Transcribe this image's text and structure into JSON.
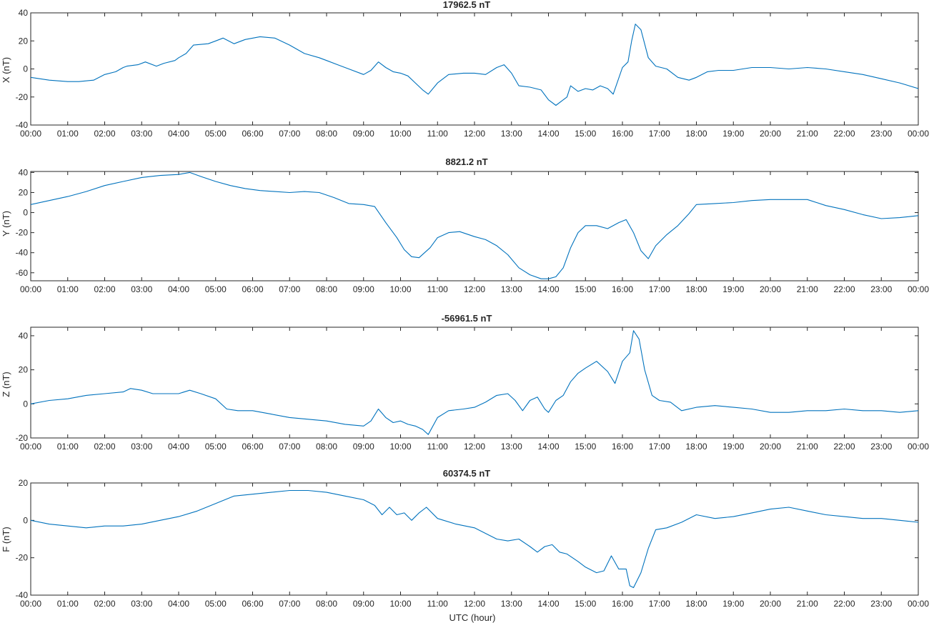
{
  "chart_data": [
    {
      "type": "line",
      "title": "17962.5 nT",
      "ylabel": "X (nT)",
      "xlabel": "",
      "ylim": [
        -40,
        40
      ],
      "yticks": [
        -40,
        -20,
        0,
        20,
        40
      ],
      "xlim": [
        0,
        24
      ],
      "xticks": [
        "00:00",
        "01:00",
        "02:00",
        "03:00",
        "04:00",
        "05:00",
        "06:00",
        "07:00",
        "08:00",
        "09:00",
        "10:00",
        "11:00",
        "12:00",
        "13:00",
        "14:00",
        "15:00",
        "16:00",
        "17:00",
        "18:00",
        "19:00",
        "20:00",
        "21:00",
        "22:00",
        "23:00",
        "00:00"
      ],
      "series": [
        {
          "x": [
            0,
            0.5,
            1,
            1.3,
            1.7,
            2,
            2.3,
            2.5,
            2.6,
            2.9,
            3.1,
            3.4,
            3.6,
            3.9,
            4.0,
            4.2,
            4.4,
            4.8,
            5.0,
            5.2,
            5.5,
            5.8,
            6.2,
            6.6,
            7.0,
            7.4,
            7.8,
            8.0,
            8.3,
            8.6,
            9.0,
            9.2,
            9.4,
            9.6,
            9.8,
            10.0,
            10.2,
            10.4,
            10.6,
            10.75,
            11.0,
            11.3,
            11.7,
            12.0,
            12.3,
            12.6,
            12.8,
            13.0,
            13.2,
            13.5,
            13.8,
            14.0,
            14.2,
            14.4,
            14.5,
            14.6,
            14.8,
            15.0,
            15.2,
            15.4,
            15.6,
            15.75,
            16.0,
            16.15,
            16.25,
            16.35,
            16.5,
            16.7,
            16.9,
            17.2,
            17.5,
            17.8,
            18.0,
            18.3,
            18.6,
            19.0,
            19.5,
            20.0,
            20.5,
            21.0,
            21.5,
            22.0,
            22.5,
            23.0,
            23.5,
            24.0
          ],
          "values": [
            -6,
            -8,
            -9,
            -9,
            -8,
            -4,
            -2,
            1,
            2,
            3,
            5,
            2,
            4,
            6,
            8,
            11,
            17,
            18,
            20,
            22,
            18,
            21,
            23,
            22,
            17,
            11,
            8,
            6,
            3,
            0,
            -4,
            -1,
            5,
            1,
            -2,
            -3,
            -5,
            -10,
            -15,
            -18,
            -10,
            -4,
            -3,
            -3,
            -4,
            1,
            3,
            -3,
            -12,
            -13,
            -15,
            -22,
            -26,
            -22,
            -20,
            -12,
            -16,
            -14,
            -15,
            -12,
            -14,
            -18,
            1,
            5,
            20,
            32,
            28,
            8,
            2,
            0,
            -6,
            -8,
            -6,
            -2,
            -1,
            -1,
            1,
            1,
            0,
            1,
            0,
            -2,
            -4,
            -7,
            -10,
            -14
          ]
        }
      ]
    },
    {
      "type": "line",
      "title": "8821.2 nT",
      "ylabel": "Y (nT)",
      "xlabel": "",
      "ylim": [
        -68,
        41
      ],
      "yticks": [
        -60,
        -40,
        -20,
        0,
        20,
        40
      ],
      "xlim": [
        0,
        24
      ],
      "xticks": [
        "00:00",
        "01:00",
        "02:00",
        "03:00",
        "04:00",
        "05:00",
        "06:00",
        "07:00",
        "08:00",
        "09:00",
        "10:00",
        "11:00",
        "12:00",
        "13:00",
        "14:00",
        "15:00",
        "16:00",
        "17:00",
        "18:00",
        "19:00",
        "20:00",
        "21:00",
        "22:00",
        "23:00",
        "00:00"
      ],
      "series": [
        {
          "x": [
            0,
            0.5,
            1,
            1.5,
            2,
            2.5,
            3,
            3.5,
            4,
            4.3,
            4.6,
            5.0,
            5.4,
            5.8,
            6.2,
            6.6,
            7.0,
            7.4,
            7.8,
            8.2,
            8.6,
            9.0,
            9.3,
            9.6,
            9.9,
            10.1,
            10.3,
            10.5,
            10.8,
            11.0,
            11.3,
            11.6,
            12.0,
            12.3,
            12.6,
            12.9,
            13.2,
            13.5,
            13.8,
            14.0,
            14.2,
            14.4,
            14.6,
            14.8,
            15.0,
            15.3,
            15.6,
            15.9,
            16.1,
            16.3,
            16.5,
            16.7,
            16.9,
            17.2,
            17.5,
            17.8,
            18.0,
            18.5,
            19.0,
            19.5,
            20.0,
            20.5,
            21.0,
            21.5,
            22.0,
            22.5,
            23.0,
            23.5,
            24.0
          ],
          "values": [
            8,
            12,
            16,
            21,
            27,
            31,
            35,
            37,
            38,
            40,
            36,
            31,
            27,
            24,
            22,
            21,
            20,
            21,
            20,
            15,
            9,
            8,
            6,
            -10,
            -25,
            -37,
            -44,
            -45,
            -35,
            -25,
            -20,
            -19,
            -24,
            -27,
            -33,
            -42,
            -55,
            -62,
            -66,
            -66,
            -64,
            -55,
            -35,
            -20,
            -13,
            -13,
            -16,
            -10,
            -7,
            -20,
            -38,
            -46,
            -33,
            -22,
            -13,
            -1,
            8,
            9,
            10,
            12,
            13,
            13,
            13,
            7,
            3,
            -2,
            -6,
            -5,
            -3
          ]
        }
      ]
    },
    {
      "type": "line",
      "title": "-56961.5 nT",
      "ylabel": "Z (nT)",
      "xlabel": "",
      "ylim": [
        -20,
        45
      ],
      "yticks": [
        -20,
        0,
        20,
        40
      ],
      "xlim": [
        0,
        24
      ],
      "xticks": [
        "00:00",
        "01:00",
        "02:00",
        "03:00",
        "04:00",
        "05:00",
        "06:00",
        "07:00",
        "08:00",
        "09:00",
        "10:00",
        "11:00",
        "12:00",
        "13:00",
        "14:00",
        "15:00",
        "16:00",
        "17:00",
        "18:00",
        "19:00",
        "20:00",
        "21:00",
        "22:00",
        "23:00",
        "00:00"
      ],
      "series": [
        {
          "x": [
            0,
            0.5,
            1,
            1.5,
            2,
            2.5,
            2.7,
            3.0,
            3.3,
            3.6,
            4.0,
            4.3,
            4.6,
            5.0,
            5.3,
            5.6,
            6.0,
            6.5,
            7.0,
            7.5,
            8.0,
            8.5,
            9.0,
            9.2,
            9.4,
            9.6,
            9.8,
            10.0,
            10.2,
            10.4,
            10.6,
            10.75,
            11.0,
            11.3,
            11.7,
            12.0,
            12.3,
            12.6,
            12.9,
            13.1,
            13.3,
            13.5,
            13.7,
            13.9,
            14.0,
            14.2,
            14.4,
            14.6,
            14.8,
            15.0,
            15.3,
            15.6,
            15.8,
            16.0,
            16.2,
            16.3,
            16.45,
            16.6,
            16.8,
            17.0,
            17.3,
            17.6,
            18.0,
            18.5,
            19.0,
            19.5,
            20.0,
            20.5,
            21.0,
            21.5,
            22.0,
            22.5,
            23.0,
            23.5,
            24.0
          ],
          "values": [
            0,
            2,
            3,
            5,
            6,
            7,
            9,
            8,
            6,
            6,
            6,
            8,
            6,
            3,
            -3,
            -4,
            -4,
            -6,
            -8,
            -9,
            -10,
            -12,
            -13,
            -10,
            -3,
            -8,
            -11,
            -10,
            -12,
            -13,
            -15,
            -18,
            -8,
            -4,
            -3,
            -2,
            1,
            5,
            6,
            2,
            -4,
            2,
            4,
            -3,
            -5,
            2,
            5,
            13,
            18,
            21,
            25,
            19,
            12,
            25,
            30,
            43,
            38,
            20,
            5,
            2,
            1,
            -4,
            -2,
            -1,
            -2,
            -3,
            -5,
            -5,
            -4,
            -4,
            -3,
            -4,
            -4,
            -5,
            -4
          ]
        }
      ]
    },
    {
      "type": "line",
      "title": "60374.5 nT",
      "ylabel": "F (nT)",
      "xlabel": "UTC (hour)",
      "ylim": [
        -40,
        20
      ],
      "yticks": [
        -40,
        -20,
        0,
        20
      ],
      "xlim": [
        0,
        24
      ],
      "xticks": [
        "00:00",
        "01:00",
        "02:00",
        "03:00",
        "04:00",
        "05:00",
        "06:00",
        "07:00",
        "08:00",
        "09:00",
        "10:00",
        "11:00",
        "12:00",
        "13:00",
        "14:00",
        "15:00",
        "16:00",
        "17:00",
        "18:00",
        "19:00",
        "20:00",
        "21:00",
        "22:00",
        "23:00",
        "00:00"
      ],
      "series": [
        {
          "x": [
            0,
            0.5,
            1,
            1.5,
            2,
            2.5,
            3,
            3.5,
            4,
            4.5,
            5.0,
            5.5,
            6.0,
            6.5,
            7.0,
            7.5,
            8.0,
            8.5,
            9.0,
            9.3,
            9.5,
            9.7,
            9.9,
            10.1,
            10.3,
            10.5,
            10.7,
            11.0,
            11.5,
            12.0,
            12.3,
            12.6,
            12.9,
            13.2,
            13.5,
            13.7,
            13.9,
            14.1,
            14.3,
            14.5,
            14.8,
            15.0,
            15.3,
            15.5,
            15.7,
            15.9,
            16.1,
            16.2,
            16.3,
            16.5,
            16.7,
            16.9,
            17.2,
            17.6,
            18.0,
            18.5,
            19.0,
            19.5,
            20.0,
            20.5,
            21.0,
            21.5,
            22.0,
            22.5,
            23.0,
            23.5,
            24.0
          ],
          "values": [
            0,
            -2,
            -3,
            -4,
            -3,
            -3,
            -2,
            0,
            2,
            5,
            9,
            13,
            14,
            15,
            16,
            16,
            15,
            13,
            11,
            8,
            3,
            7,
            3,
            4,
            0,
            4,
            7,
            1,
            -2,
            -4,
            -7,
            -10,
            -11,
            -10,
            -14,
            -17,
            -14,
            -13,
            -17,
            -18,
            -22,
            -25,
            -28,
            -27,
            -19,
            -26,
            -26,
            -35,
            -36,
            -28,
            -15,
            -5,
            -4,
            -1,
            3,
            1,
            2,
            4,
            6,
            7,
            5,
            3,
            2,
            1,
            1,
            0,
            -1
          ]
        }
      ]
    }
  ],
  "colors": {
    "series": "#0072bd",
    "axis": "#262626"
  }
}
